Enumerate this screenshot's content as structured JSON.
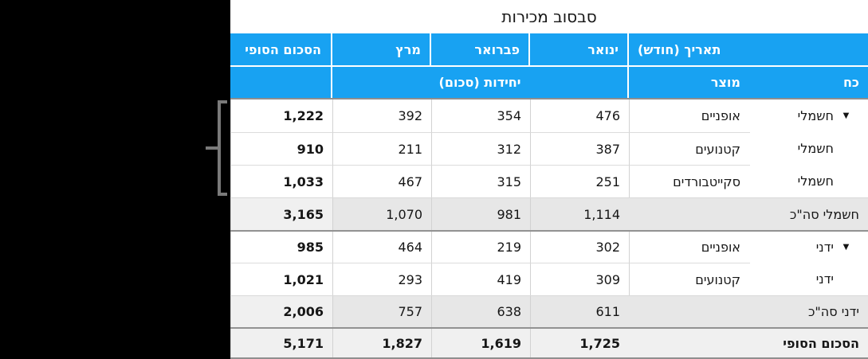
{
  "title": "סבסוב מכירות",
  "header": {
    "date_field": "תאריך (חודש)",
    "months": [
      "ינואר",
      "פברואר",
      "מרץ"
    ],
    "grand_total": "הסכום הסופי",
    "power": "כח",
    "product": "מוצר",
    "units": "יחידות (סכום)"
  },
  "rows": [
    {
      "type": "item",
      "power": "חשמלי",
      "disclosure": true,
      "product": "אופניים",
      "values": [
        "476",
        "354",
        "392"
      ],
      "total": "1,222"
    },
    {
      "type": "item",
      "power": "חשמלי",
      "disclosure": false,
      "product": "קטנועים",
      "values": [
        "387",
        "312",
        "211"
      ],
      "total": "910"
    },
    {
      "type": "item",
      "power": "חשמלי",
      "disclosure": false,
      "product": "סקייטבורדים",
      "values": [
        "251",
        "315",
        "467"
      ],
      "total": "1,033"
    },
    {
      "type": "subtotal",
      "label": "חשמלי סה\"כ",
      "values": [
        "1,114",
        "981",
        "1,070"
      ],
      "total": "3,165"
    },
    {
      "type": "item",
      "power": "ידני",
      "disclosure": true,
      "product": "אופניים",
      "values": [
        "302",
        "219",
        "464"
      ],
      "total": "985"
    },
    {
      "type": "item",
      "power": "ידני",
      "disclosure": false,
      "product": "קטנועים",
      "values": [
        "309",
        "419",
        "293"
      ],
      "total": "1,021"
    },
    {
      "type": "subtotal",
      "label": "ידני סה\"כ",
      "values": [
        "611",
        "638",
        "757"
      ],
      "total": "2,006"
    },
    {
      "type": "grandtotal",
      "label": "הסכום הסופי",
      "values": [
        "1,725",
        "1,619",
        "1,827"
      ],
      "total": "5,171"
    }
  ],
  "icons": {
    "disclosure_triangle": "▼"
  },
  "colors": {
    "header_blue": "#18a2f2",
    "header_text": "#ffffff",
    "subtotal_row_bg": "#e7e7e7",
    "grand_total_bg": "#f0f0f0",
    "separator_dark": "#929292",
    "separator_light": "#dcdcdc",
    "bracket_grey": "#7a7a7a",
    "canvas_background": "#000000"
  }
}
